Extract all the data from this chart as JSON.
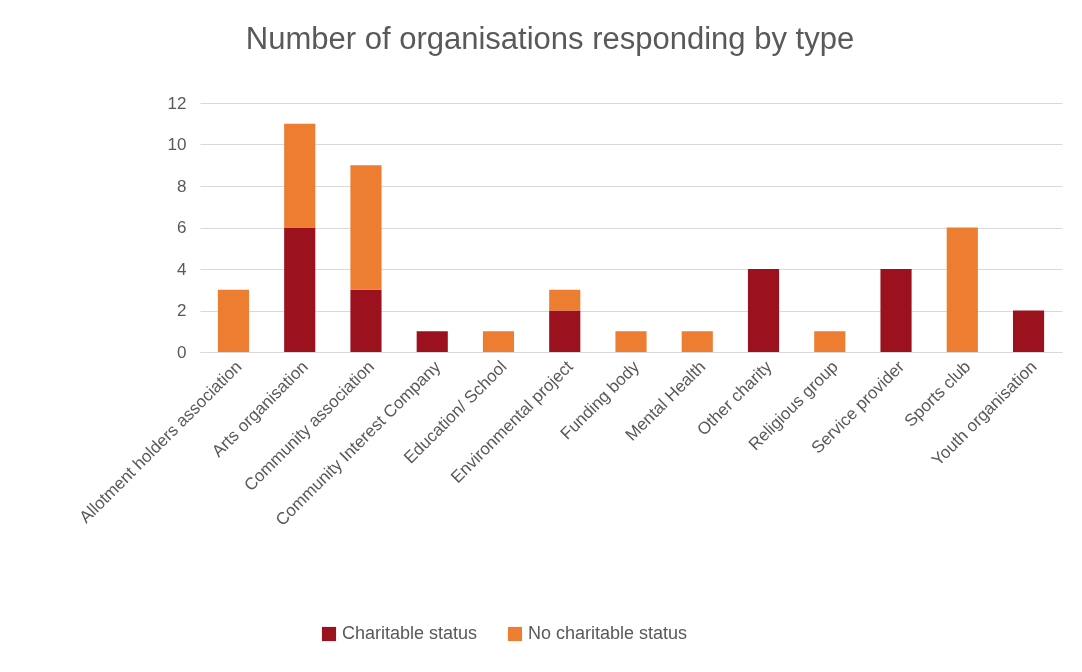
{
  "chart_data": {
    "type": "bar",
    "stacked": true,
    "title": "Number of organisations responding by type",
    "categories": [
      "Allotment holders association",
      "Arts organisation",
      "Community association",
      "Community Interest Company",
      "Education/ School",
      "Environmental project",
      "Funding body",
      "Mental Health",
      "Other charity",
      "Religious group",
      "Service provider",
      "Sports club",
      "Youth organisation"
    ],
    "series": [
      {
        "name": "Charitable status",
        "color": "#9b111e",
        "values": [
          0,
          6,
          3,
          1,
          0,
          2,
          0,
          0,
          4,
          0,
          4,
          0,
          2
        ]
      },
      {
        "name": "No charitable status",
        "color": "#ed7d31",
        "values": [
          3,
          5,
          6,
          0,
          1,
          1,
          1,
          1,
          0,
          1,
          0,
          6,
          0
        ]
      }
    ],
    "ylim": [
      0,
      12
    ],
    "yticks": [
      0,
      2,
      4,
      6,
      8,
      10,
      12
    ],
    "grid": "y",
    "legend": "bottom"
  }
}
